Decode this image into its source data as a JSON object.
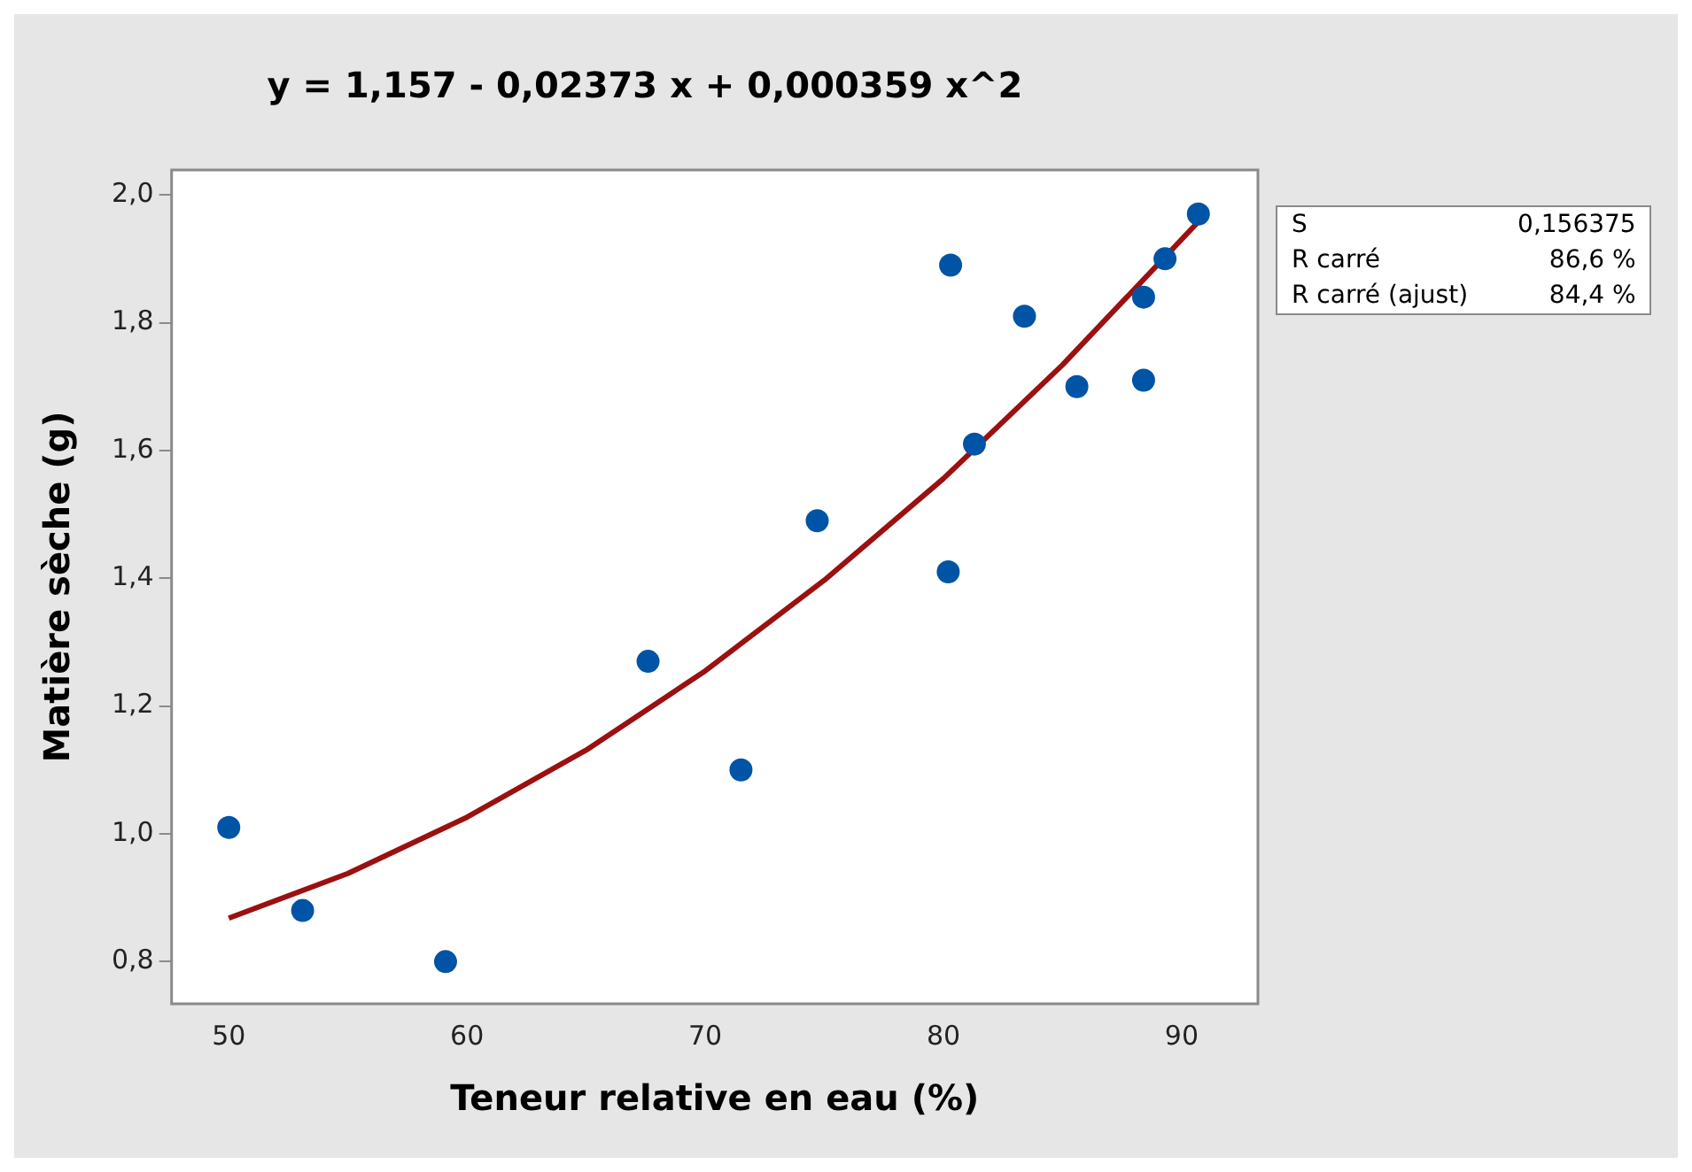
{
  "chart_data": {
    "type": "scatter",
    "title": "y = 1,157 - 0,02373 x + 0,000359 x^2",
    "xlabel": "Teneur relative en eau (%)",
    "ylabel": "Matière sèche (g)",
    "x": [
      50.0,
      53.1,
      59.1,
      67.6,
      71.5,
      74.7,
      80.2,
      80.3,
      81.3,
      83.4,
      85.6,
      88.4,
      88.4,
      89.3,
      90.7
    ],
    "series": [
      {
        "color": "#0054a6",
        "values": [
          1.01,
          0.88,
          0.8,
          1.27,
          1.1,
          1.49,
          1.41,
          1.89,
          1.61,
          1.81,
          1.7,
          1.71,
          1.84,
          1.9,
          1.97
        ]
      },
      {
        "type": "line",
        "color": "#9b1010",
        "marker": "none",
        "x": [
          50,
          55,
          60,
          65,
          70,
          75,
          80,
          85,
          90.7
        ],
        "values": [
          0.868,
          0.938,
          1.026,
          1.131,
          1.255,
          1.397,
          1.556,
          1.734,
          1.958
        ]
      }
    ],
    "xlim": [
      47.6,
      93.2
    ],
    "xticks": [
      50,
      60,
      70,
      80,
      90
    ],
    "ylim": [
      0.734,
      2.039
    ],
    "yticks": [
      {
        "value": 0.8,
        "label": "0,8"
      },
      {
        "value": 1.0,
        "label": "1,0"
      },
      {
        "value": 1.2,
        "label": "1,2"
      },
      {
        "value": 1.4,
        "label": "1,4"
      },
      {
        "value": 1.6,
        "label": "1,6"
      },
      {
        "value": 1.8,
        "label": "1,8"
      },
      {
        "value": 2.0,
        "label": "2,0"
      }
    ],
    "grid": false,
    "legend": false,
    "marker": "circle",
    "annotations": [
      "S",
      "0,156375",
      "R carré",
      "86,6 %",
      "R carré (ajust)",
      "84,4 %"
    ]
  }
}
